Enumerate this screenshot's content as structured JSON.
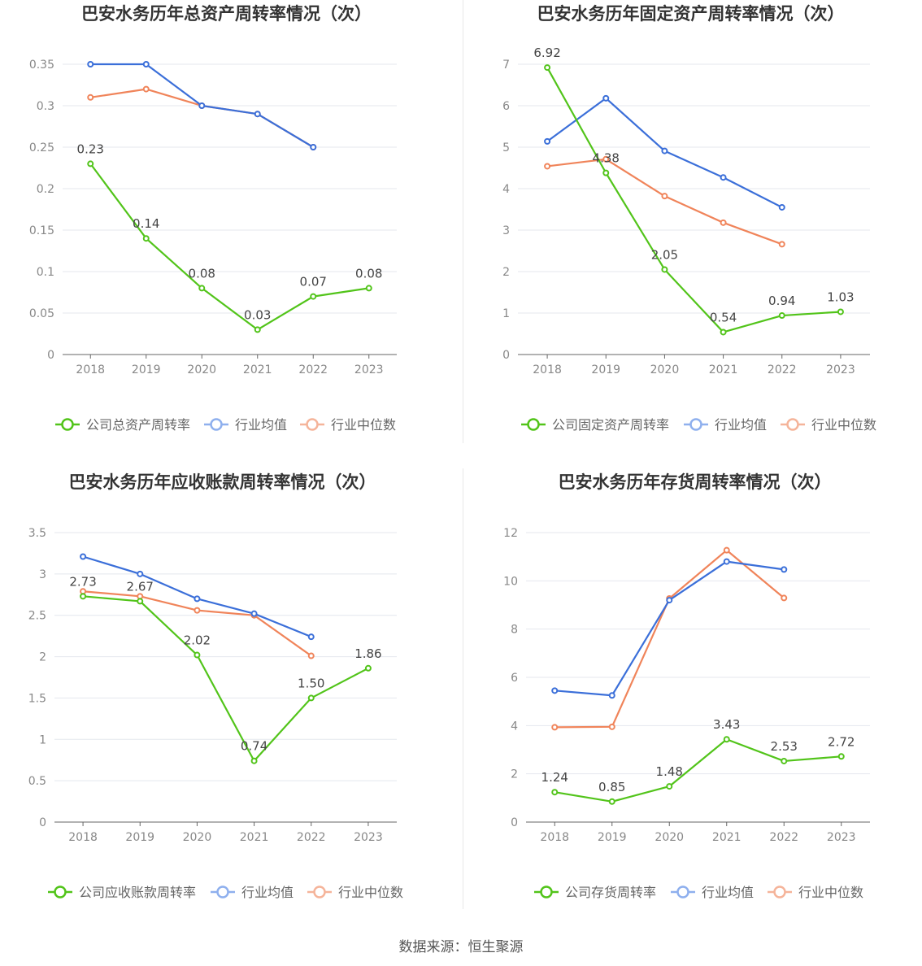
{
  "colors": {
    "company": "#52c41a",
    "avg": "#3b6fd9",
    "median": "#f0845a",
    "legend_avg": "#8fb0ee",
    "legend_median": "#f5b49a",
    "grid": "#e4e7ee",
    "axis": "#666666",
    "tick": "#888888"
  },
  "source": "数据来源：恒生聚源",
  "chart_data": [
    {
      "type": "line",
      "title": "巴安水务历年总资产周转率情况（次）",
      "categories": [
        "2018",
        "2019",
        "2020",
        "2021",
        "2022",
        "2023"
      ],
      "ylim": [
        0,
        0.35
      ],
      "yticks": [
        "0",
        "0.05",
        "0.1",
        "0.15",
        "0.2",
        "0.25",
        "0.3",
        "0.35"
      ],
      "series": [
        {
          "name": "公司总资产周转率",
          "role": "company",
          "values": [
            0.23,
            0.14,
            0.08,
            0.03,
            0.07,
            0.08
          ],
          "labels": [
            "0.23",
            "0.14",
            "0.08",
            "0.03",
            "0.07",
            "0.08"
          ]
        },
        {
          "name": "行业均值",
          "role": "avg",
          "values": [
            0.35,
            0.35,
            0.3,
            0.29,
            0.25,
            null
          ]
        },
        {
          "name": "行业中位数",
          "role": "median",
          "values": [
            0.31,
            0.32,
            0.3,
            0.29,
            0.25,
            null
          ]
        }
      ]
    },
    {
      "type": "line",
      "title": "巴安水务历年固定资产周转率情况（次）",
      "categories": [
        "2018",
        "2019",
        "2020",
        "2021",
        "2022",
        "2023"
      ],
      "ylim": [
        0,
        7
      ],
      "yticks": [
        "0",
        "1",
        "2",
        "3",
        "4",
        "5",
        "6",
        "7"
      ],
      "series": [
        {
          "name": "公司固定资产周转率",
          "role": "company",
          "values": [
            6.92,
            4.38,
            2.05,
            0.54,
            0.94,
            1.03
          ],
          "labels": [
            "6.92",
            "4.38",
            "2.05",
            "0.54",
            "0.94",
            "1.03"
          ]
        },
        {
          "name": "行业均值",
          "role": "avg",
          "values": [
            5.14,
            6.18,
            4.91,
            4.27,
            3.55,
            null
          ]
        },
        {
          "name": "行业中位数",
          "role": "median",
          "values": [
            4.54,
            4.71,
            3.82,
            3.18,
            2.66,
            null
          ]
        }
      ]
    },
    {
      "type": "line",
      "title": "巴安水务历年应收账款周转率情况（次）",
      "categories": [
        "2018",
        "2019",
        "2020",
        "2021",
        "2022",
        "2023"
      ],
      "ylim": [
        0,
        3.5
      ],
      "yticks": [
        "0",
        "0.5",
        "1",
        "1.5",
        "2",
        "2.5",
        "3",
        "3.5"
      ],
      "series": [
        {
          "name": "公司应收账款周转率",
          "role": "company",
          "values": [
            2.73,
            2.67,
            2.02,
            0.74,
            1.5,
            1.86
          ],
          "labels": [
            "2.73",
            "2.67",
            "2.02",
            "0.74",
            "1.50",
            "1.86"
          ]
        },
        {
          "name": "行业均值",
          "role": "avg",
          "values": [
            3.21,
            3.0,
            2.7,
            2.52,
            2.24,
            null
          ]
        },
        {
          "name": "行业中位数",
          "role": "median",
          "values": [
            2.79,
            2.73,
            2.56,
            2.5,
            2.01,
            null
          ]
        }
      ]
    },
    {
      "type": "line",
      "title": "巴安水务历年存货周转率情况（次）",
      "categories": [
        "2018",
        "2019",
        "2020",
        "2021",
        "2022",
        "2023"
      ],
      "ylim": [
        0,
        12
      ],
      "yticks": [
        "0",
        "2",
        "4",
        "6",
        "8",
        "10",
        "12"
      ],
      "series": [
        {
          "name": "公司存货周转率",
          "role": "company",
          "values": [
            1.24,
            0.85,
            1.48,
            3.43,
            2.53,
            2.72
          ],
          "labels": [
            "1.24",
            "0.85",
            "1.48",
            "3.43",
            "2.53",
            "2.72"
          ]
        },
        {
          "name": "行业均值",
          "role": "avg",
          "values": [
            5.45,
            5.25,
            9.2,
            10.8,
            10.47,
            null
          ]
        },
        {
          "name": "行业中位数",
          "role": "median",
          "values": [
            3.93,
            3.95,
            9.27,
            11.27,
            9.29,
            null
          ]
        }
      ]
    }
  ]
}
